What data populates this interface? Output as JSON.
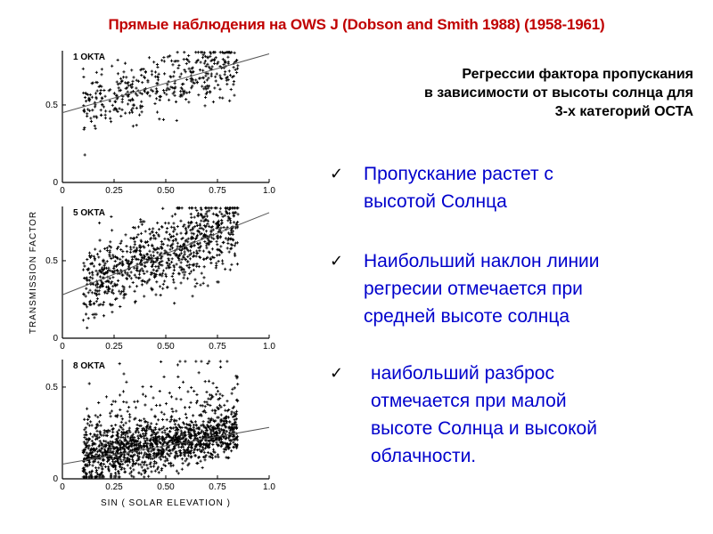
{
  "slide": {
    "title": "Прямые наблюдения на OWS J  (Dobson and Smith 1988) (1958-1961)",
    "subtitle_lines": [
      "Регрессии фактора пропускания",
      "в зависимости от высоты солнца для",
      "3-х  категорий ОСТА"
    ],
    "bullets": [
      {
        "icon": "check-icon",
        "lines": [
          "Пропускание растет с",
          "высотой Солнца"
        ]
      },
      {
        "icon": "check-icon",
        "lines": [
          "Наибольший наклон линии",
          "регресии отмечается при",
          "средней высоте солнца"
        ]
      },
      {
        "icon": "check-icon",
        "lines": [
          "наибольший разброс",
          "отмечается при малой",
          "высоте Солнца и высокой",
          "облачности."
        ]
      }
    ],
    "colors": {
      "title": "#c00000",
      "bullets": "#0000cc",
      "plot": "#000000"
    }
  },
  "chart_data": [
    {
      "type": "scatter",
      "title": "1 OKTA",
      "xlabel": "",
      "ylabel": "",
      "xlim": [
        0,
        1.0
      ],
      "ylim": [
        0,
        0.85
      ],
      "x_ticks": [
        "0",
        "0.25",
        "0.50",
        "0.75",
        "1.0"
      ],
      "y_ticks": [
        "0",
        "0.5"
      ],
      "x_range": [
        0.1,
        0.85
      ],
      "regression": {
        "x": [
          0,
          1.0
        ],
        "y": [
          0.45,
          0.83
        ]
      },
      "scatter_spread": 0.09,
      "point_count": 420
    },
    {
      "type": "scatter",
      "title": "5 OKTA",
      "xlabel": "",
      "ylabel": "TRANSMISSION  FACTOR",
      "xlim": [
        0,
        1.0
      ],
      "ylim": [
        0,
        0.85
      ],
      "x_ticks": [
        "0",
        "0.25",
        "0.50",
        "0.75",
        "1.0"
      ],
      "y_ticks": [
        "0",
        "0.5"
      ],
      "x_range": [
        0.1,
        0.85
      ],
      "regression": {
        "x": [
          0,
          1.0
        ],
        "y": [
          0.28,
          0.81
        ]
      },
      "scatter_spread": 0.12,
      "point_count": 900
    },
    {
      "type": "scatter",
      "title": "8 OKTA",
      "xlabel": "SIN ( SOLAR ELEVATION )",
      "ylabel": "",
      "xlim": [
        0,
        1.0
      ],
      "ylim": [
        0,
        0.65
      ],
      "x_ticks": [
        "0",
        "0.25",
        "0.50",
        "0.75",
        "1.0"
      ],
      "y_ticks": [
        "0",
        "0.5"
      ],
      "x_range": [
        0.1,
        0.85
      ],
      "regression": {
        "x": [
          0,
          1.0
        ],
        "y": [
          0.08,
          0.28
        ]
      },
      "scatter_spread": 0.07,
      "point_count": 1500
    }
  ]
}
